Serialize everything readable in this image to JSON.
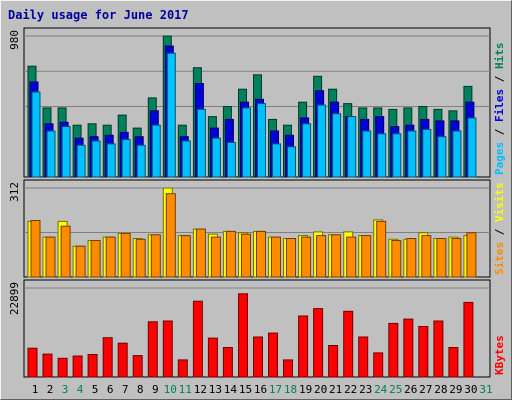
{
  "title": "Daily usage for June 2017",
  "colors": {
    "background": "#c0c0c0",
    "title": "#0000a0",
    "hits": "#00805c",
    "files": "#0000d8",
    "pages": "#00c0ff",
    "visits": "#ffff00",
    "sites": "#ff8c00",
    "kbytes": "#ff0000",
    "weekend_label": "#00805c",
    "weekday_label": "#000000"
  },
  "chart_data": [
    {
      "type": "bar",
      "panel": "hits-files-pages",
      "y_max_label": "980",
      "ylim": [
        0,
        980
      ],
      "categories": [
        "1",
        "2",
        "3",
        "4",
        "5",
        "6",
        "7",
        "8",
        "9",
        "10",
        "11",
        "12",
        "13",
        "14",
        "15",
        "16",
        "17",
        "18",
        "19",
        "20",
        "21",
        "22",
        "23",
        "24",
        "25",
        "26",
        "27",
        "28",
        "29",
        "30",
        "31"
      ],
      "weekend_days": [
        "3",
        "4",
        "10",
        "11",
        "17",
        "18",
        "24",
        "25",
        "31"
      ],
      "series": [
        {
          "name": "Hits",
          "values": [
            770,
            480,
            480,
            360,
            370,
            360,
            430,
            340,
            550,
            980,
            360,
            760,
            420,
            490,
            610,
            710,
            400,
            360,
            520,
            700,
            610,
            510,
            480,
            480,
            470,
            480,
            490,
            470,
            460,
            630,
            0
          ]
        },
        {
          "name": "Files",
          "values": [
            660,
            370,
            380,
            270,
            280,
            290,
            310,
            280,
            460,
            910,
            280,
            650,
            340,
            400,
            520,
            540,
            320,
            290,
            410,
            600,
            520,
            420,
            400,
            420,
            350,
            360,
            400,
            390,
            390,
            520,
            0
          ]
        },
        {
          "name": "Pages",
          "values": [
            590,
            320,
            350,
            220,
            250,
            230,
            260,
            220,
            360,
            860,
            250,
            470,
            270,
            240,
            480,
            510,
            230,
            210,
            370,
            500,
            440,
            420,
            320,
            300,
            300,
            320,
            330,
            280,
            320,
            410,
            0
          ]
        }
      ],
      "legend": [
        {
          "name": "Pages",
          "color_key": "pages"
        },
        {
          "name": "Files",
          "color_key": "files"
        },
        {
          "name": "Hits",
          "color_key": "hits"
        }
      ]
    },
    {
      "type": "bar",
      "panel": "visits-sites",
      "y_max_label": "312",
      "ylim": [
        0,
        312
      ],
      "categories": [
        "1",
        "2",
        "3",
        "4",
        "5",
        "6",
        "7",
        "8",
        "9",
        "10",
        "11",
        "12",
        "13",
        "14",
        "15",
        "16",
        "17",
        "18",
        "19",
        "20",
        "21",
        "22",
        "23",
        "24",
        "25",
        "26",
        "27",
        "28",
        "29",
        "30",
        "31"
      ],
      "series": [
        {
          "name": "Visits",
          "values": [
            195,
            140,
            195,
            108,
            128,
            140,
            153,
            135,
            148,
            312,
            145,
            168,
            150,
            160,
            155,
            160,
            140,
            135,
            145,
            158,
            148,
            158,
            145,
            200,
            132,
            132,
            155,
            135,
            140,
            145,
            0
          ]
        },
        {
          "name": "Sites",
          "values": [
            198,
            140,
            178,
            108,
            128,
            140,
            153,
            132,
            148,
            292,
            145,
            168,
            140,
            160,
            150,
            160,
            140,
            135,
            140,
            145,
            148,
            140,
            145,
            195,
            128,
            135,
            145,
            135,
            135,
            155,
            0
          ]
        }
      ],
      "legend": [
        {
          "name": "Sites",
          "color_key": "sites"
        },
        {
          "name": "Visits",
          "color_key": "visits"
        }
      ]
    },
    {
      "type": "bar",
      "panel": "kbytes",
      "y_max_label": "22899",
      "ylim": [
        0,
        22899
      ],
      "categories": [
        "1",
        "2",
        "3",
        "4",
        "5",
        "6",
        "7",
        "8",
        "9",
        "10",
        "11",
        "12",
        "13",
        "14",
        "15",
        "16",
        "17",
        "18",
        "19",
        "20",
        "21",
        "22",
        "23",
        "24",
        "25",
        "26",
        "27",
        "28",
        "29",
        "30",
        "31"
      ],
      "series": [
        {
          "name": "KBytes",
          "values": [
            7400,
            5900,
            4800,
            5400,
            5800,
            10100,
            8700,
            5500,
            14200,
            14400,
            4400,
            19500,
            10000,
            7600,
            21400,
            10300,
            11300,
            4400,
            15700,
            17600,
            8100,
            16900,
            10300,
            6200,
            13800,
            14900,
            13000,
            14400,
            7600,
            19200,
            0
          ]
        }
      ],
      "legend": [
        {
          "name": "KBytes",
          "color_key": "kbytes"
        }
      ]
    }
  ]
}
